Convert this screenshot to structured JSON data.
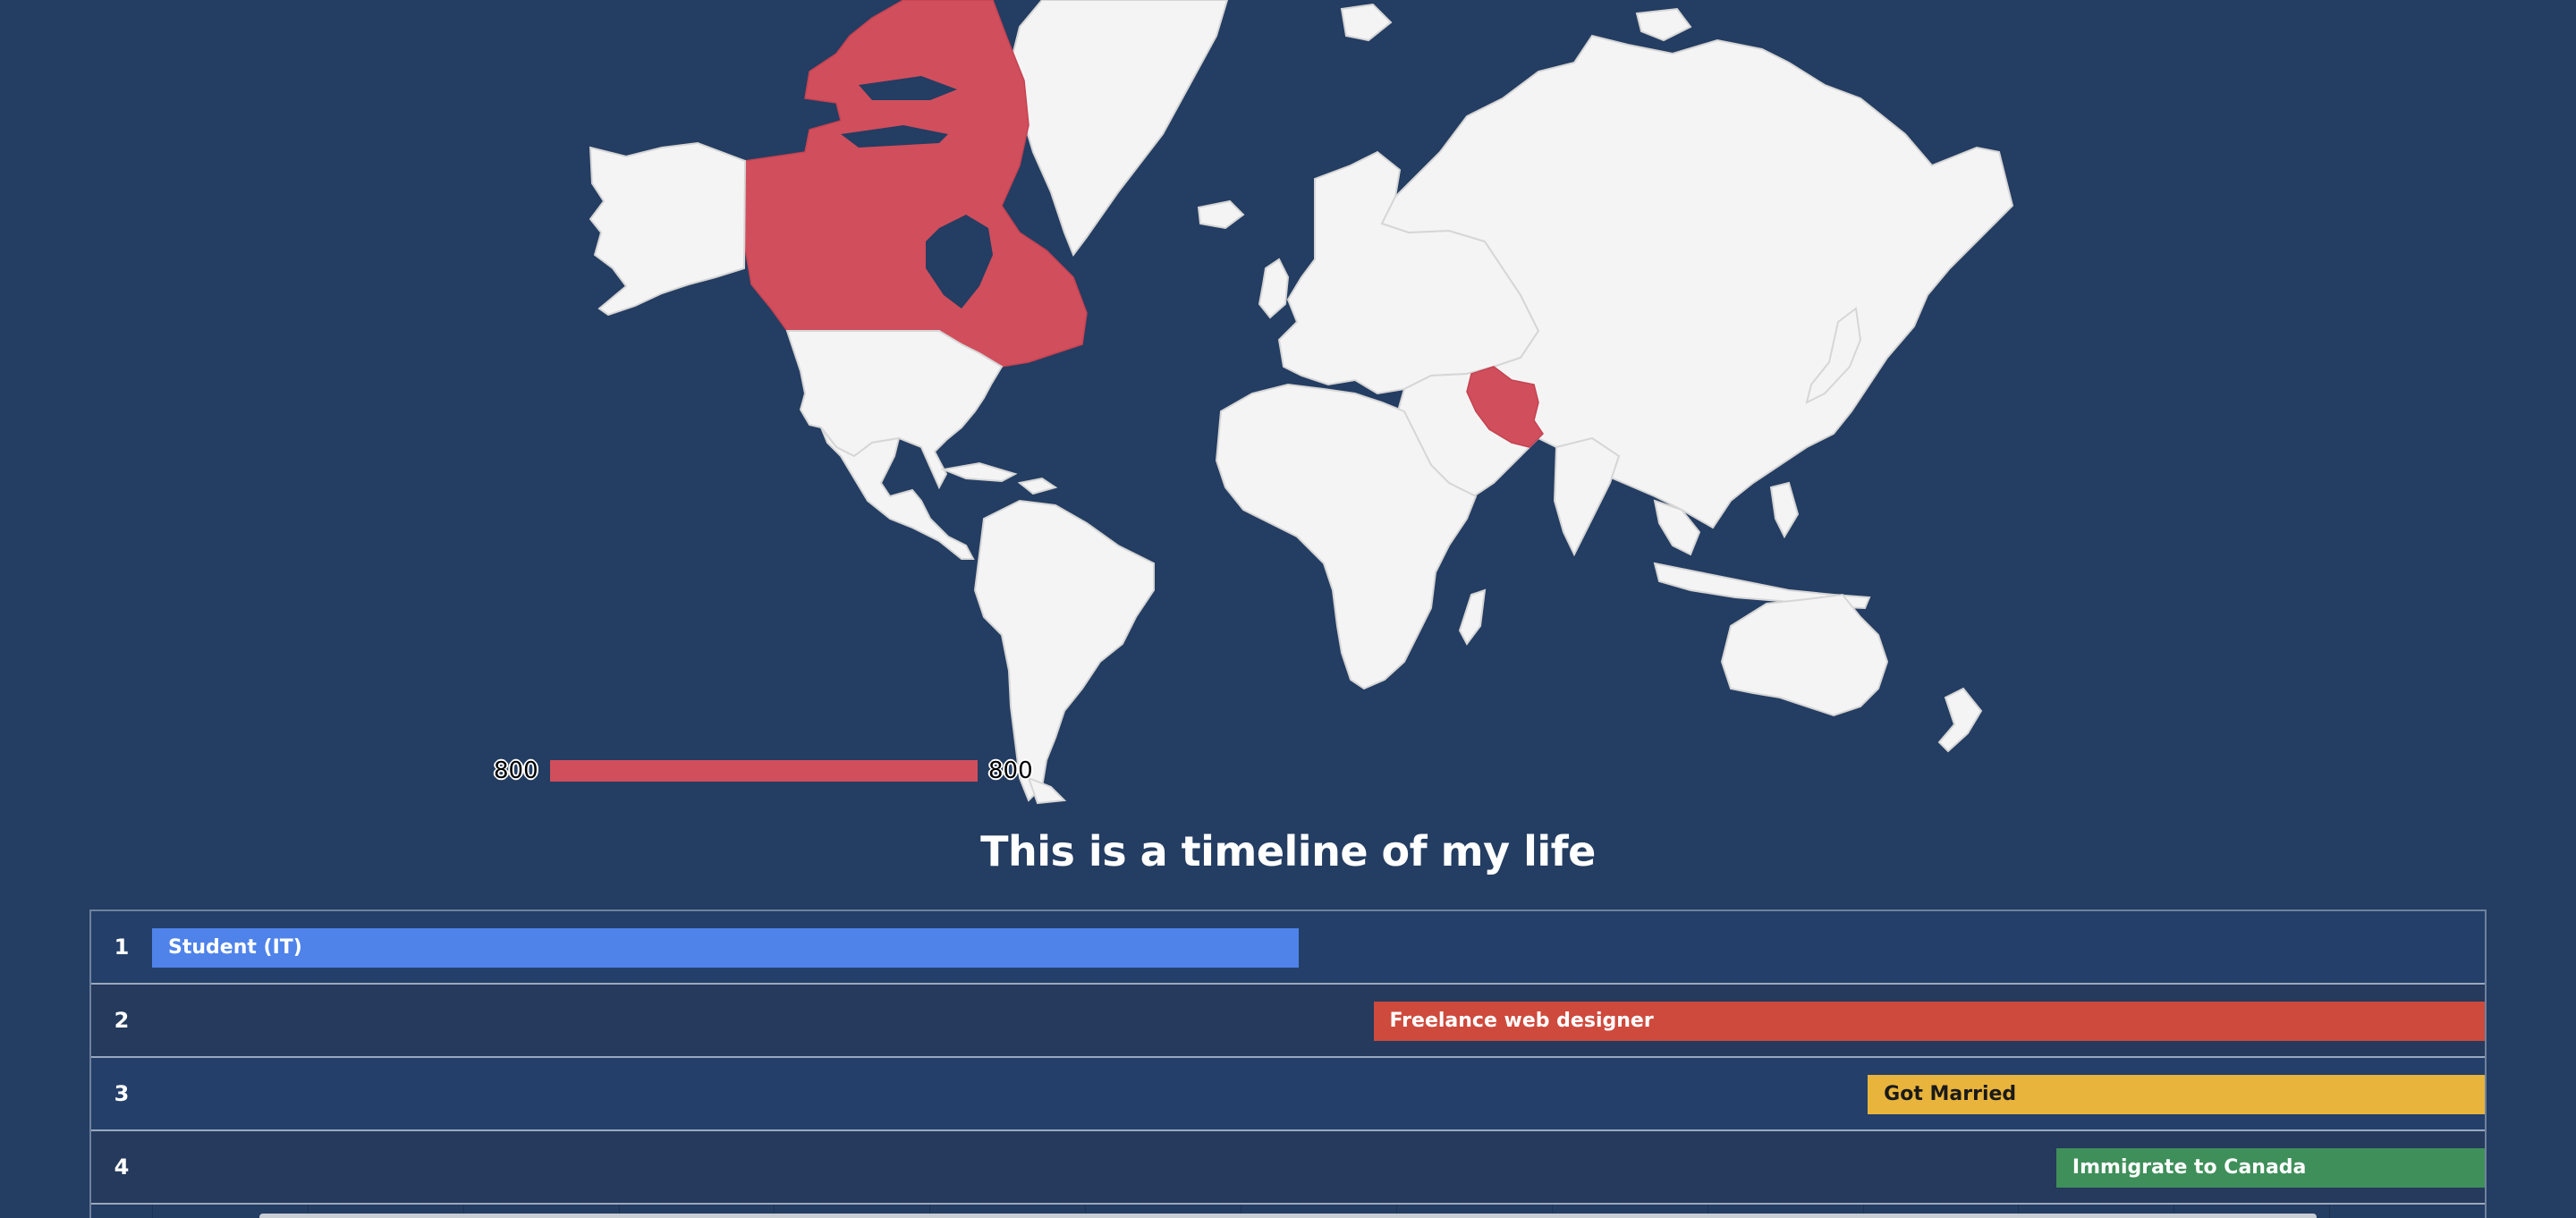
{
  "map": {
    "highlight_color": "#d14e5c",
    "land_color": "#f4f4f4",
    "ocean_color": "#243d62",
    "highlighted_countries": [
      "Canada",
      "Iran"
    ],
    "legend": {
      "min_label": "800",
      "max_label": "800"
    }
  },
  "timeline": {
    "title": "This is a timeline of my life",
    "rows": [
      {
        "number": "1",
        "label": "Student (IT)",
        "color": "#4f83ea",
        "text_color": "#ffffff",
        "start": 0.0,
        "end": 0.4917
      },
      {
        "number": "2",
        "label": "Freelance web designer",
        "color": "#cd4a3d",
        "text_color": "#ffffff",
        "start": 0.5236,
        "end": 1.0
      },
      {
        "number": "3",
        "label": "Got Married",
        "color": "#e9b43c",
        "text_color": "#1a1a1a",
        "start": 0.7355,
        "end": 1.0
      },
      {
        "number": "4",
        "label": "Immigrate to Canada",
        "color": "#3f8f5a",
        "text_color": "#ffffff",
        "start": 0.8163,
        "end": 1.0
      }
    ]
  }
}
